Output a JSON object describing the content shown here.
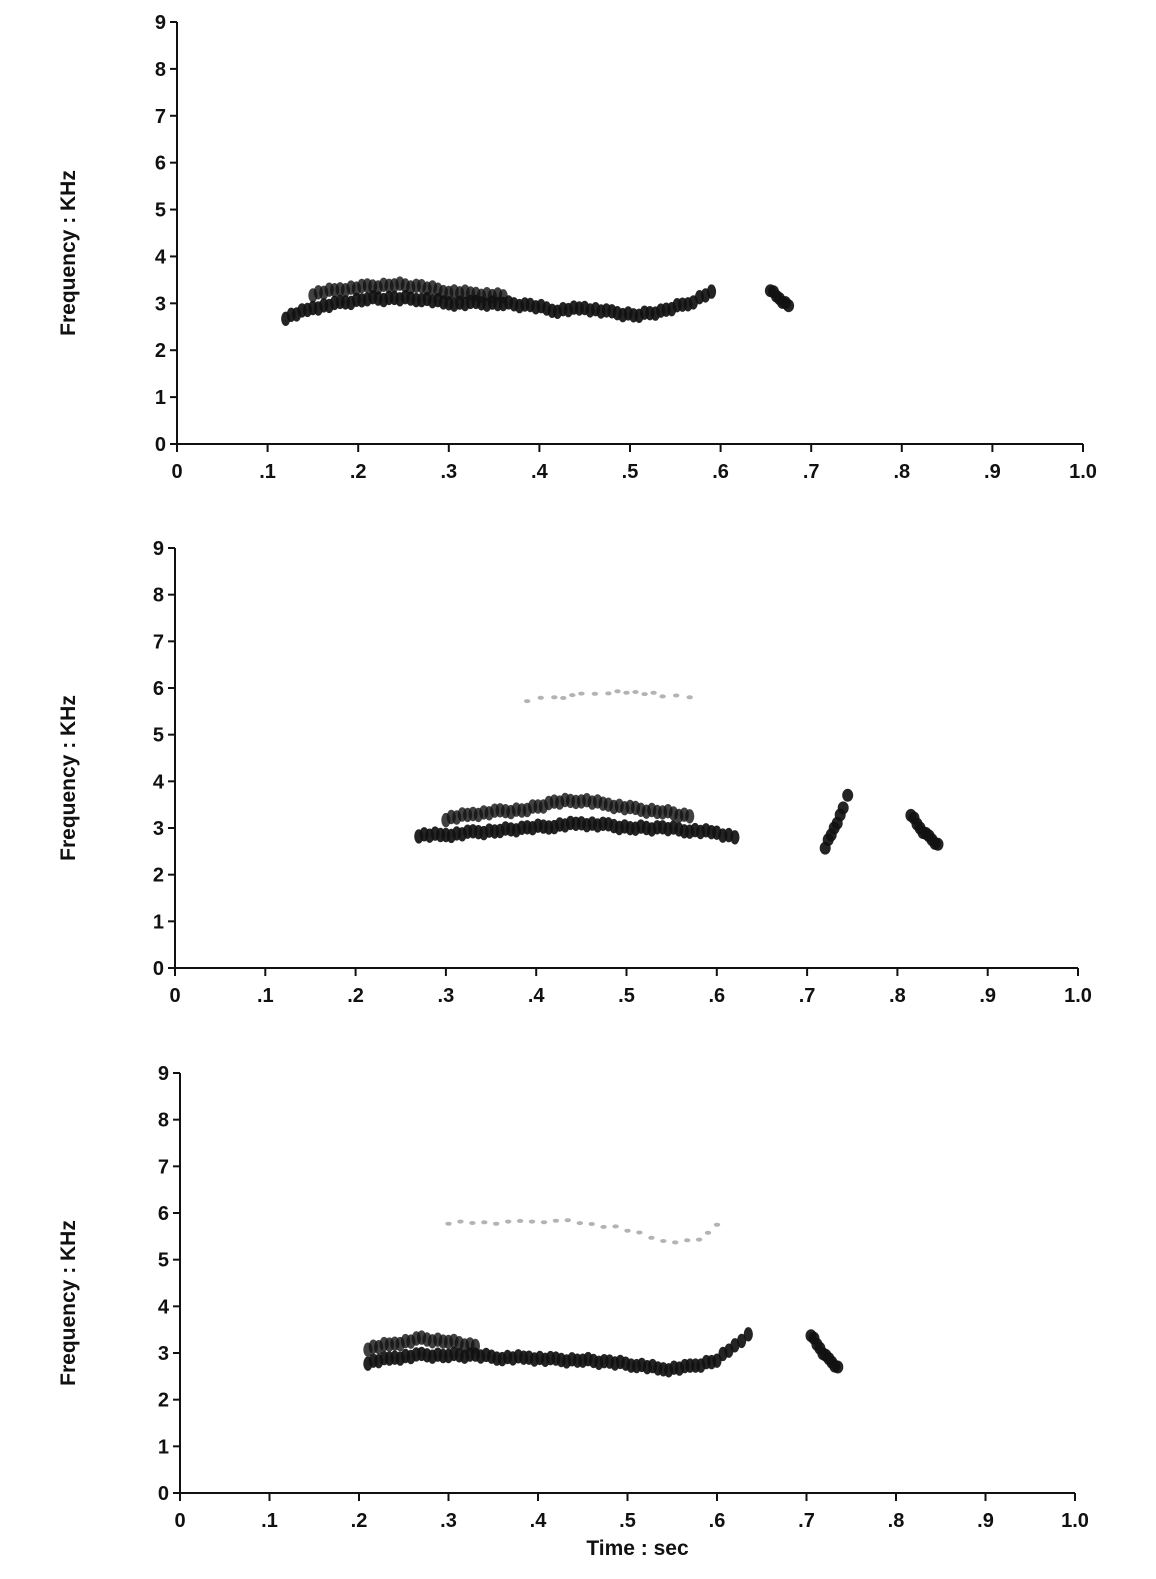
{
  "colors": {
    "ink": "#111111",
    "paper": "#ffffff",
    "harmonic": "#9a9a9a"
  },
  "chart_data": [
    {
      "type": "spectrogram",
      "ylabel": "Frequency : KHz",
      "xlabel": "",
      "xlim": [
        0,
        1.0
      ],
      "ylim": [
        0,
        9
      ],
      "x_ticks": [
        "0",
        ".1",
        ".2",
        ".3",
        ".4",
        ".5",
        ".6",
        ".7",
        ".8",
        ".9",
        "1.0"
      ],
      "y_ticks": [
        "0",
        "1",
        "2",
        "3",
        "4",
        "5",
        "6",
        "7",
        "8",
        "9"
      ],
      "grid": false,
      "series": [
        {
          "kind": "fundamental",
          "points": [
            {
              "x": 0.12,
              "y": 2.7
            },
            {
              "x": 0.15,
              "y": 2.9
            },
            {
              "x": 0.18,
              "y": 3.0
            },
            {
              "x": 0.21,
              "y": 3.1
            },
            {
              "x": 0.24,
              "y": 3.1
            },
            {
              "x": 0.27,
              "y": 3.1
            },
            {
              "x": 0.3,
              "y": 3.0
            },
            {
              "x": 0.33,
              "y": 3.0
            },
            {
              "x": 0.36,
              "y": 3.0
            },
            {
              "x": 0.39,
              "y": 2.95
            },
            {
              "x": 0.42,
              "y": 2.85
            },
            {
              "x": 0.45,
              "y": 2.9
            },
            {
              "x": 0.48,
              "y": 2.8
            },
            {
              "x": 0.51,
              "y": 2.75
            },
            {
              "x": 0.54,
              "y": 2.85
            },
            {
              "x": 0.57,
              "y": 3.05
            },
            {
              "x": 0.59,
              "y": 3.25
            }
          ]
        },
        {
          "kind": "overtone",
          "points": [
            {
              "x": 0.15,
              "y": 3.2
            },
            {
              "x": 0.18,
              "y": 3.3
            },
            {
              "x": 0.21,
              "y": 3.35
            },
            {
              "x": 0.24,
              "y": 3.4
            },
            {
              "x": 0.27,
              "y": 3.35
            },
            {
              "x": 0.3,
              "y": 3.25
            },
            {
              "x": 0.33,
              "y": 3.2
            },
            {
              "x": 0.36,
              "y": 3.15
            }
          ]
        },
        {
          "kind": "note",
          "points": [
            {
              "x": 0.655,
              "y": 3.3
            },
            {
              "x": 0.665,
              "y": 3.1
            },
            {
              "x": 0.675,
              "y": 2.95
            }
          ]
        }
      ]
    },
    {
      "type": "spectrogram",
      "ylabel": "Frequency : KHz",
      "xlabel": "",
      "xlim": [
        0,
        1.0
      ],
      "ylim": [
        0,
        9
      ],
      "x_ticks": [
        "0",
        ".1",
        ".2",
        ".3",
        ".4",
        ".5",
        ".6",
        ".7",
        ".8",
        ".9",
        "1.0"
      ],
      "y_ticks": [
        "0",
        "1",
        "2",
        "3",
        "4",
        "5",
        "6",
        "7",
        "8",
        "9"
      ],
      "grid": false,
      "series": [
        {
          "kind": "fundamental",
          "points": [
            {
              "x": 0.27,
              "y": 2.85
            },
            {
              "x": 0.3,
              "y": 2.85
            },
            {
              "x": 0.33,
              "y": 2.9
            },
            {
              "x": 0.36,
              "y": 2.95
            },
            {
              "x": 0.39,
              "y": 3.0
            },
            {
              "x": 0.42,
              "y": 3.05
            },
            {
              "x": 0.45,
              "y": 3.1
            },
            {
              "x": 0.48,
              "y": 3.05
            },
            {
              "x": 0.51,
              "y": 3.0
            },
            {
              "x": 0.54,
              "y": 3.0
            },
            {
              "x": 0.57,
              "y": 2.95
            },
            {
              "x": 0.6,
              "y": 2.9
            },
            {
              "x": 0.62,
              "y": 2.8
            }
          ]
        },
        {
          "kind": "overtone",
          "points": [
            {
              "x": 0.3,
              "y": 3.2
            },
            {
              "x": 0.33,
              "y": 3.3
            },
            {
              "x": 0.36,
              "y": 3.35
            },
            {
              "x": 0.39,
              "y": 3.4
            },
            {
              "x": 0.42,
              "y": 3.55
            },
            {
              "x": 0.45,
              "y": 3.6
            },
            {
              "x": 0.48,
              "y": 3.5
            },
            {
              "x": 0.51,
              "y": 3.4
            },
            {
              "x": 0.54,
              "y": 3.35
            },
            {
              "x": 0.57,
              "y": 3.25
            }
          ]
        },
        {
          "kind": "harmonic",
          "points": [
            {
              "x": 0.39,
              "y": 5.75
            },
            {
              "x": 0.42,
              "y": 5.8
            },
            {
              "x": 0.45,
              "y": 5.85
            },
            {
              "x": 0.48,
              "y": 5.9
            },
            {
              "x": 0.51,
              "y": 5.9
            },
            {
              "x": 0.54,
              "y": 5.85
            },
            {
              "x": 0.57,
              "y": 5.8
            }
          ]
        },
        {
          "kind": "note",
          "points": [
            {
              "x": 0.72,
              "y": 2.6
            },
            {
              "x": 0.73,
              "y": 3.0
            },
            {
              "x": 0.74,
              "y": 3.4
            },
            {
              "x": 0.745,
              "y": 3.7
            }
          ]
        },
        {
          "kind": "note",
          "points": [
            {
              "x": 0.815,
              "y": 3.3
            },
            {
              "x": 0.825,
              "y": 3.0
            },
            {
              "x": 0.835,
              "y": 2.8
            },
            {
              "x": 0.845,
              "y": 2.65
            }
          ]
        }
      ]
    },
    {
      "type": "spectrogram",
      "ylabel": "Frequency : KHz",
      "xlabel": "Time : sec",
      "xlim": [
        0,
        1.0
      ],
      "ylim": [
        0,
        9
      ],
      "x_ticks": [
        "0",
        ".1",
        ".2",
        ".3",
        ".4",
        ".5",
        ".6",
        ".7",
        ".8",
        ".9",
        "1.0"
      ],
      "y_ticks": [
        "0",
        "1",
        "2",
        "3",
        "4",
        "5",
        "6",
        "7",
        "8",
        "9"
      ],
      "grid": false,
      "series": [
        {
          "kind": "fundamental",
          "points": [
            {
              "x": 0.21,
              "y": 2.8
            },
            {
              "x": 0.24,
              "y": 2.9
            },
            {
              "x": 0.27,
              "y": 2.95
            },
            {
              "x": 0.3,
              "y": 2.95
            },
            {
              "x": 0.33,
              "y": 2.95
            },
            {
              "x": 0.36,
              "y": 2.9
            },
            {
              "x": 0.39,
              "y": 2.9
            },
            {
              "x": 0.42,
              "y": 2.85
            },
            {
              "x": 0.45,
              "y": 2.85
            },
            {
              "x": 0.48,
              "y": 2.8
            },
            {
              "x": 0.51,
              "y": 2.75
            },
            {
              "x": 0.54,
              "y": 2.65
            },
            {
              "x": 0.57,
              "y": 2.7
            },
            {
              "x": 0.6,
              "y": 2.85
            },
            {
              "x": 0.62,
              "y": 3.15
            },
            {
              "x": 0.635,
              "y": 3.4
            }
          ]
        },
        {
          "kind": "overtone",
          "points": [
            {
              "x": 0.21,
              "y": 3.1
            },
            {
              "x": 0.24,
              "y": 3.2
            },
            {
              "x": 0.27,
              "y": 3.3
            },
            {
              "x": 0.3,
              "y": 3.25
            },
            {
              "x": 0.33,
              "y": 3.15
            }
          ]
        },
        {
          "kind": "harmonic",
          "points": [
            {
              "x": 0.3,
              "y": 5.8
            },
            {
              "x": 0.34,
              "y": 5.8
            },
            {
              "x": 0.38,
              "y": 5.8
            },
            {
              "x": 0.42,
              "y": 5.85
            },
            {
              "x": 0.46,
              "y": 5.75
            },
            {
              "x": 0.5,
              "y": 5.65
            },
            {
              "x": 0.54,
              "y": 5.4
            },
            {
              "x": 0.58,
              "y": 5.4
            },
            {
              "x": 0.6,
              "y": 5.75
            }
          ]
        },
        {
          "kind": "note",
          "points": [
            {
              "x": 0.705,
              "y": 3.4
            },
            {
              "x": 0.715,
              "y": 3.1
            },
            {
              "x": 0.725,
              "y": 2.85
            },
            {
              "x": 0.735,
              "y": 2.7
            }
          ]
        }
      ]
    }
  ]
}
